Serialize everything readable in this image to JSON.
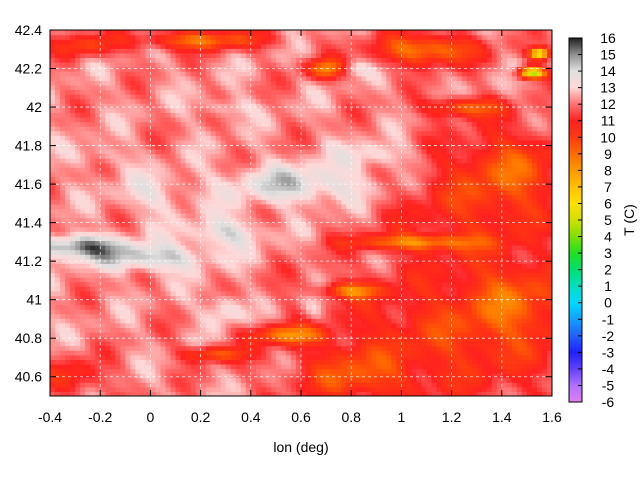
{
  "chart_data": {
    "type": "heatmap",
    "xlabel": "lon (deg)",
    "ylabel": "",
    "xlim": [
      -0.4,
      1.6
    ],
    "ylim": [
      40.5,
      42.4
    ],
    "x_ticks": [
      "-0.4",
      "-0.2",
      "0",
      "0.2",
      "0.4",
      "0.6",
      "0.8",
      "1",
      "1.2",
      "1.4",
      "1.6"
    ],
    "y_ticks": [
      "40.6",
      "40.8",
      "41",
      "41.2",
      "41.4",
      "41.6",
      "41.8",
      "42",
      "42.2",
      "42.4"
    ],
    "grid": true,
    "colorbar": {
      "label": "T  (C)",
      "range": [
        -6,
        16
      ],
      "ticks": [
        "16",
        "15",
        "14",
        "13",
        "12",
        "11",
        "10",
        "9",
        "8",
        "7",
        "6",
        "5",
        "4",
        "3",
        "2",
        "1",
        "0",
        "-1",
        "-2",
        "-3",
        "-4",
        "-5",
        "-6"
      ],
      "stops": [
        {
          "value": -6,
          "color": "#e080f0"
        },
        {
          "value": -5,
          "color": "#b070ff"
        },
        {
          "value": -4,
          "color": "#6040ff"
        },
        {
          "value": -3,
          "color": "#2020ff"
        },
        {
          "value": -2,
          "color": "#2060ff"
        },
        {
          "value": -1,
          "color": "#10a0ff"
        },
        {
          "value": 0,
          "color": "#00d8ff"
        },
        {
          "value": 1,
          "color": "#00e0c0"
        },
        {
          "value": 2,
          "color": "#00e070"
        },
        {
          "value": 3,
          "color": "#20e020"
        },
        {
          "value": 4,
          "color": "#80e000"
        },
        {
          "value": 5,
          "color": "#d0e000"
        },
        {
          "value": 6,
          "color": "#ffe000"
        },
        {
          "value": 7,
          "color": "#ffc000"
        },
        {
          "value": 8,
          "color": "#ff9800"
        },
        {
          "value": 9,
          "color": "#ff6a00"
        },
        {
          "value": 10,
          "color": "#ff3a10"
        },
        {
          "value": 11,
          "color": "#ff2020"
        },
        {
          "value": 12,
          "color": "#ff7070"
        },
        {
          "value": 13,
          "color": "#ffd8d8"
        },
        {
          "value": 14,
          "color": "#e0e0e0"
        },
        {
          "value": 15,
          "color": "#909090"
        },
        {
          "value": 16,
          "color": "#202020"
        }
      ]
    },
    "field": {
      "base_temp": 12.2,
      "features": [
        {
          "lon": -0.3,
          "lat": 41.28,
          "temp": 15.2,
          "rlon": 0.18,
          "rlat": 0.06
        },
        {
          "lon": 0.0,
          "lat": 41.22,
          "temp": 14.5,
          "rlon": 0.22,
          "rlat": 0.07
        },
        {
          "lon": 0.3,
          "lat": 41.35,
          "temp": 14.0,
          "rlon": 0.15,
          "rlat": 0.08
        },
        {
          "lon": 0.6,
          "lat": 41.6,
          "temp": 14.2,
          "rlon": 0.3,
          "rlat": 0.1
        },
        {
          "lon": 0.9,
          "lat": 41.75,
          "temp": 13.6,
          "rlon": 0.15,
          "rlat": 0.07
        },
        {
          "lon": 0.65,
          "lat": 40.95,
          "temp": 13.5,
          "rlon": 0.05,
          "rlat": 0.08
        },
        {
          "lon": 0.3,
          "lat": 40.95,
          "temp": 13.8,
          "rlon": 0.08,
          "rlat": 0.08
        },
        {
          "lon": 0.0,
          "lat": 41.55,
          "temp": 13.3,
          "rlon": 0.14,
          "rlat": 0.1
        },
        {
          "lon": 0.8,
          "lat": 42.2,
          "temp": 13.5,
          "rlon": 0.06,
          "rlat": 0.04
        },
        {
          "lon": 0.3,
          "lat": 42.0,
          "temp": 13.2,
          "rlon": 0.1,
          "rlat": 0.05
        },
        {
          "lon": -0.2,
          "lat": 41.75,
          "temp": 13.0,
          "rlon": 0.1,
          "rlat": 0.06
        },
        {
          "lon": 1.2,
          "lat": 40.8,
          "temp": 10.2,
          "rlon": 0.55,
          "rlat": 0.35
        },
        {
          "lon": 1.45,
          "lat": 41.0,
          "temp": 10.3,
          "rlon": 0.2,
          "rlat": 0.2
        },
        {
          "lon": 0.8,
          "lat": 40.6,
          "temp": 10.2,
          "rlon": 0.2,
          "rlat": 0.12
        },
        {
          "lon": 1.3,
          "lat": 41.5,
          "temp": 10.5,
          "rlon": 0.35,
          "rlat": 0.3
        },
        {
          "lon": 1.45,
          "lat": 41.7,
          "temp": 10.3,
          "rlon": 0.2,
          "rlat": 0.2
        },
        {
          "lon": 1.05,
          "lat": 41.3,
          "temp": 9.0,
          "rlon": 0.25,
          "rlat": 0.04
        },
        {
          "lon": 0.8,
          "lat": 41.05,
          "temp": 9.2,
          "rlon": 0.12,
          "rlat": 0.04
        },
        {
          "lon": 0.55,
          "lat": 40.82,
          "temp": 8.9,
          "rlon": 0.15,
          "rlat": 0.05
        },
        {
          "lon": 0.25,
          "lat": 40.72,
          "temp": 9.4,
          "rlon": 0.12,
          "rlat": 0.04
        },
        {
          "lon": -0.3,
          "lat": 40.6,
          "temp": 10.4,
          "rlon": 0.12,
          "rlat": 0.1
        },
        {
          "lon": 0.2,
          "lat": 42.35,
          "temp": 9.0,
          "rlon": 0.25,
          "rlat": 0.05
        },
        {
          "lon": 0.7,
          "lat": 42.2,
          "temp": 8.5,
          "rlon": 0.08,
          "rlat": 0.05
        },
        {
          "lon": 1.1,
          "lat": 42.3,
          "temp": 8.5,
          "rlon": 0.2,
          "rlat": 0.08
        },
        {
          "lon": 1.25,
          "lat": 42.0,
          "temp": 9.2,
          "rlon": 0.15,
          "rlat": 0.05
        },
        {
          "lon": 1.52,
          "lat": 42.18,
          "temp": 4.2,
          "rlon": 0.05,
          "rlat": 0.03
        },
        {
          "lon": 1.55,
          "lat": 42.28,
          "temp": 5.5,
          "rlon": 0.04,
          "rlat": 0.03
        },
        {
          "lon": -0.25,
          "lat": 42.32,
          "temp": 10.0,
          "rlon": 0.12,
          "rlat": 0.06
        },
        {
          "lon": 0.78,
          "lat": 40.72,
          "temp": 11.8,
          "rlon": 0.08,
          "rlat": 0.04
        }
      ]
    }
  }
}
